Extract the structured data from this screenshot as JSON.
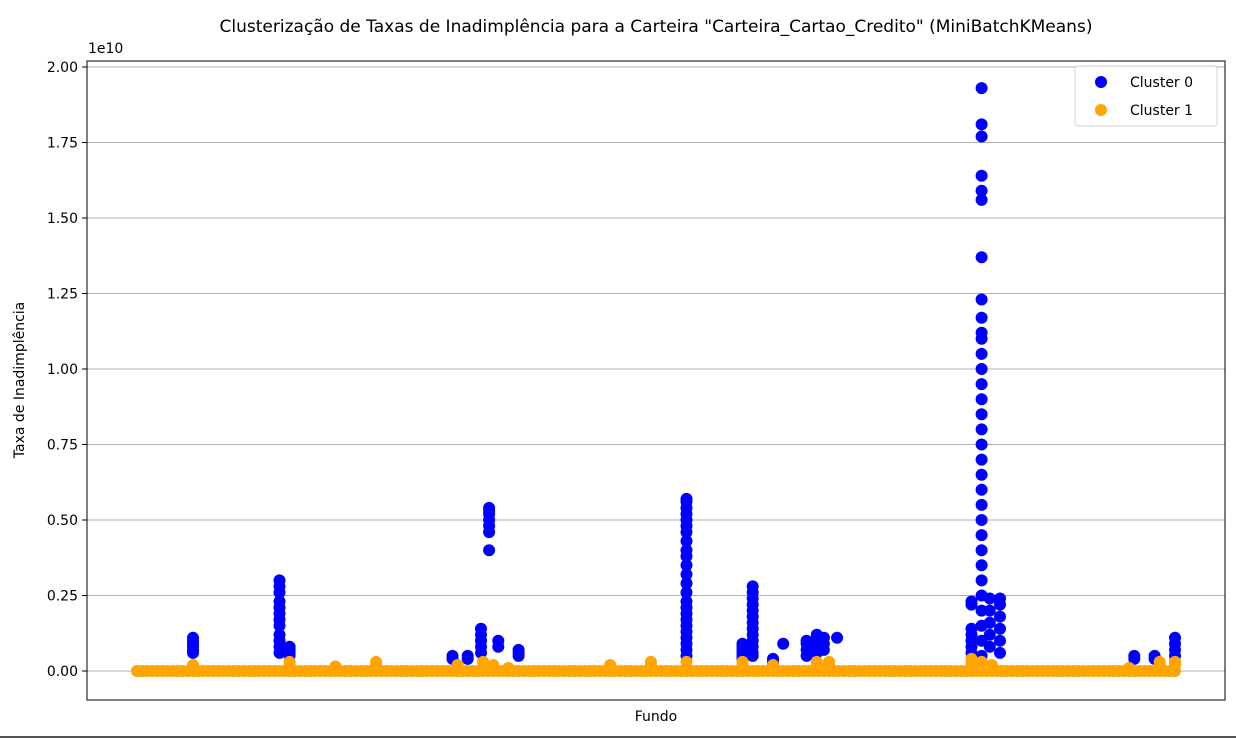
{
  "chart_data": {
    "type": "scatter",
    "title": "Clusterização de Taxas de Inadimplência para a Carteira \"Carteira_Cartao_Credito\" (MiniBatchKMeans)",
    "xlabel": "Fundo",
    "ylabel": "Taxa de Inadimplência",
    "y_offset_label": "1e10",
    "ylim": [
      -0.1,
      2.02
    ],
    "xlim": [
      0,
      100
    ],
    "yticks": [
      0.0,
      0.25,
      0.5,
      0.75,
      1.0,
      1.25,
      1.5,
      1.75,
      2.0
    ],
    "ytick_labels": [
      "0.00",
      "0.25",
      "0.50",
      "0.75",
      "1.00",
      "1.25",
      "1.50",
      "1.75",
      "2.00"
    ],
    "grid": "y",
    "legend_position": "top-right",
    "series": [
      {
        "name": "Cluster 0",
        "label": "Cluster 0",
        "color": "#0000ff",
        "groups": [
          {
            "x": 5.5,
            "y": [
              0.06,
              0.07,
              0.08,
              0.09,
              0.1,
              0.11
            ]
          },
          {
            "x": 14.0,
            "y": [
              0.06,
              0.08,
              0.1,
              0.12,
              0.15,
              0.17,
              0.19,
              0.21,
              0.23,
              0.26,
              0.28,
              0.3
            ]
          },
          {
            "x": 15.0,
            "y": [
              0.05,
              0.06,
              0.07,
              0.08
            ]
          },
          {
            "x": 31.0,
            "y": [
              0.04,
              0.05
            ]
          },
          {
            "x": 32.5,
            "y": [
              0.04,
              0.05
            ]
          },
          {
            "x": 33.8,
            "y": [
              0.06,
              0.08,
              0.1,
              0.12,
              0.14
            ]
          },
          {
            "x": 34.6,
            "y": [
              0.4,
              0.46,
              0.48,
              0.5,
              0.52,
              0.53,
              0.54
            ]
          },
          {
            "x": 35.5,
            "y": [
              0.08,
              0.1
            ]
          },
          {
            "x": 37.5,
            "y": [
              0.05,
              0.06,
              0.07
            ]
          },
          {
            "x": 54.0,
            "y": [
              0.05,
              0.07,
              0.09,
              0.11,
              0.13,
              0.15,
              0.17,
              0.19,
              0.21,
              0.23,
              0.26,
              0.29,
              0.32,
              0.35,
              0.38,
              0.4,
              0.43,
              0.46,
              0.48,
              0.5,
              0.52,
              0.54,
              0.56,
              0.57
            ]
          },
          {
            "x": 59.5,
            "y": [
              0.04,
              0.05,
              0.06,
              0.07,
              0.08,
              0.09
            ]
          },
          {
            "x": 60.5,
            "y": [
              0.05,
              0.06,
              0.08,
              0.1,
              0.12,
              0.14,
              0.16,
              0.18,
              0.2,
              0.22,
              0.24,
              0.26,
              0.28
            ]
          },
          {
            "x": 62.5,
            "y": [
              0.03,
              0.04
            ]
          },
          {
            "x": 63.5,
            "y": [
              0.09
            ]
          },
          {
            "x": 65.8,
            "y": [
              0.05,
              0.07,
              0.09,
              0.1
            ]
          },
          {
            "x": 66.8,
            "y": [
              0.06,
              0.08,
              0.1,
              0.12
            ]
          },
          {
            "x": 67.5,
            "y": [
              0.07,
              0.09,
              0.11
            ]
          },
          {
            "x": 68.8,
            "y": [
              0.11
            ]
          },
          {
            "x": 82.0,
            "y": [
              0.06,
              0.08,
              0.1,
              0.12,
              0.14,
              0.22,
              0.23
            ]
          },
          {
            "x": 83.0,
            "y": [
              0.05,
              0.1,
              0.15,
              0.2,
              0.25,
              0.3,
              0.35,
              0.4,
              0.45,
              0.5,
              0.55,
              0.6,
              0.65,
              0.7,
              0.75,
              0.8,
              0.85,
              0.9,
              0.95,
              1.0,
              1.05,
              1.1,
              1.12,
              1.17,
              1.23,
              1.37,
              1.56,
              1.59,
              1.64,
              1.77,
              1.81,
              1.93
            ]
          },
          {
            "x": 83.8,
            "y": [
              0.08,
              0.12,
              0.16,
              0.2,
              0.24
            ]
          },
          {
            "x": 84.8,
            "y": [
              0.06,
              0.1,
              0.14,
              0.18,
              0.22,
              0.24
            ]
          },
          {
            "x": 98.0,
            "y": [
              0.04,
              0.05
            ]
          },
          {
            "x": 100.0,
            "y": [
              0.04,
              0.05
            ]
          },
          {
            "x": 102.0,
            "y": [
              0.05,
              0.07,
              0.09,
              0.11
            ]
          }
        ]
      },
      {
        "name": "Cluster 1",
        "label": "Cluster 1",
        "color": "#ffa500",
        "baseline": {
          "x_start": 0.0,
          "x_end": 102.0,
          "y": 0.0
        },
        "groups": [
          {
            "x": 5.5,
            "y": [
              0.02
            ]
          },
          {
            "x": 15.0,
            "y": [
              0.02,
              0.03
            ]
          },
          {
            "x": 19.5,
            "y": [
              0.015
            ]
          },
          {
            "x": 23.5,
            "y": [
              0.02,
              0.03
            ]
          },
          {
            "x": 31.5,
            "y": [
              0.02
            ]
          },
          {
            "x": 34.0,
            "y": [
              0.03
            ]
          },
          {
            "x": 35.0,
            "y": [
              0.02
            ]
          },
          {
            "x": 36.5,
            "y": [
              0.01
            ]
          },
          {
            "x": 46.5,
            "y": [
              0.02
            ]
          },
          {
            "x": 50.5,
            "y": [
              0.02,
              0.03
            ]
          },
          {
            "x": 54.0,
            "y": [
              0.03
            ]
          },
          {
            "x": 59.5,
            "y": [
              0.02,
              0.03
            ]
          },
          {
            "x": 62.5,
            "y": [
              0.02
            ]
          },
          {
            "x": 66.8,
            "y": [
              0.02,
              0.03
            ]
          },
          {
            "x": 68.0,
            "y": [
              0.02,
              0.03
            ]
          },
          {
            "x": 82.0,
            "y": [
              0.02,
              0.03,
              0.04
            ]
          },
          {
            "x": 83.0,
            "y": [
              0.02,
              0.03
            ]
          },
          {
            "x": 84.0,
            "y": [
              0.02
            ]
          },
          {
            "x": 97.5,
            "y": [
              0.01
            ]
          },
          {
            "x": 100.5,
            "y": [
              0.02,
              0.03
            ]
          },
          {
            "x": 102.0,
            "y": [
              0.02,
              0.03
            ]
          }
        ]
      }
    ]
  }
}
